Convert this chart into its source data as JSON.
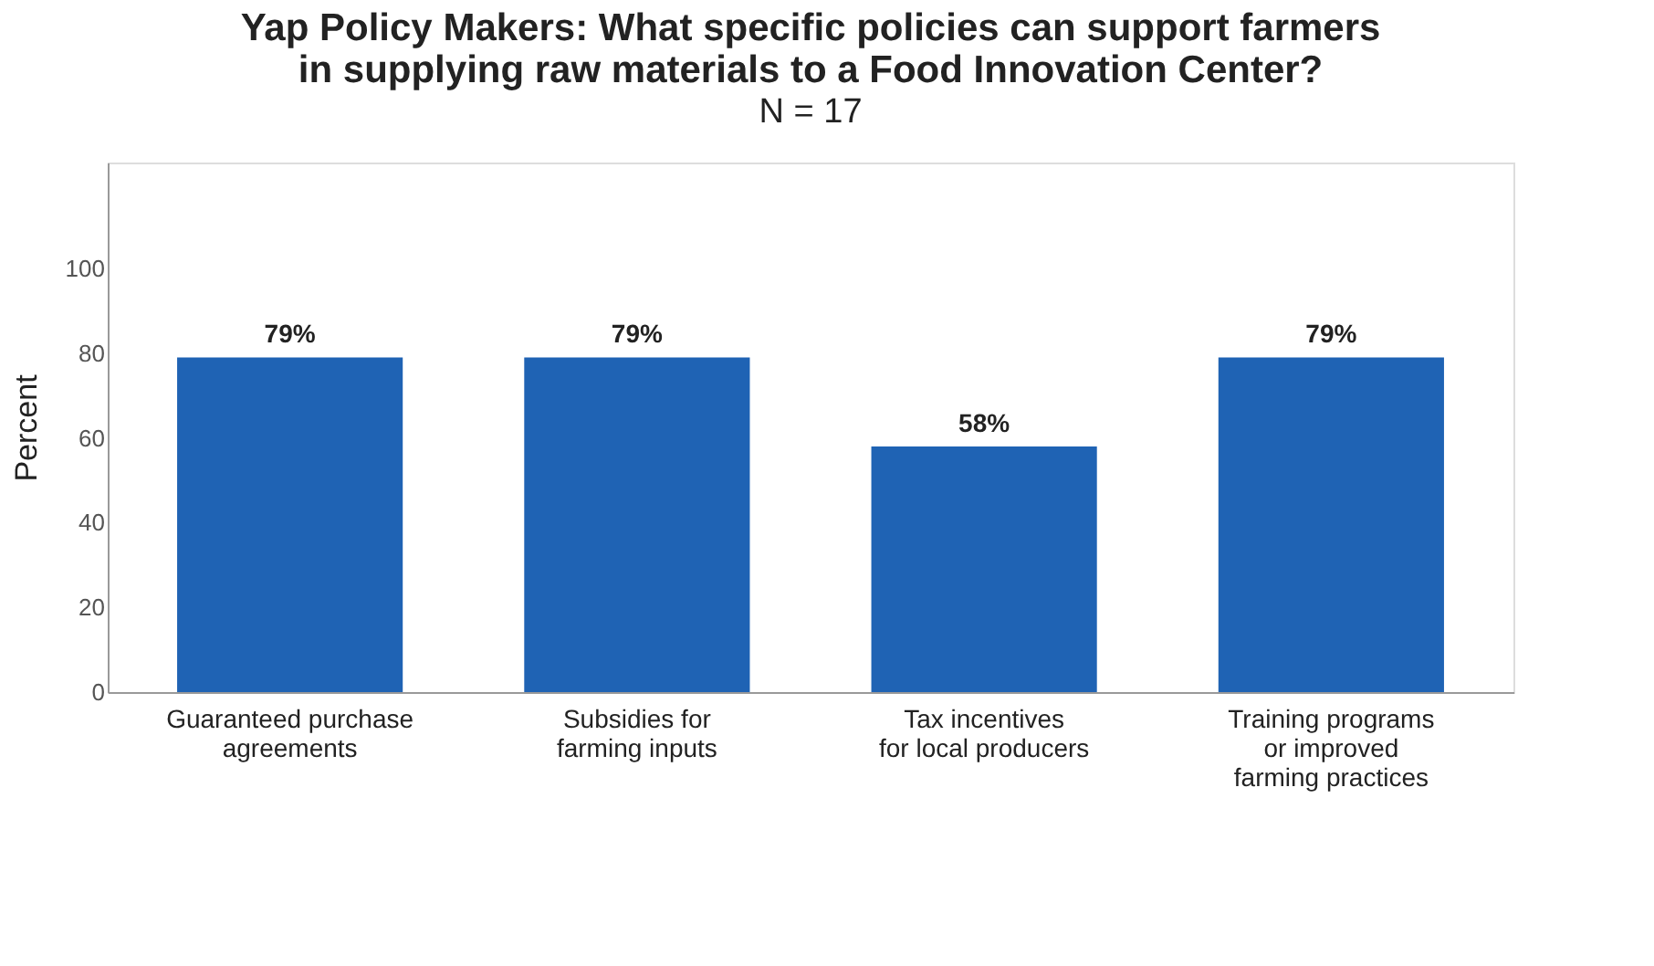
{
  "chart_data": {
    "type": "bar",
    "title": "Yap Policy Makers: What specific policies can support farmers\nin supplying raw materials to a Food Innovation Center?",
    "subtitle": "N = 17",
    "ylabel": "Percent",
    "categories": [
      "Guaranteed purchase\nagreements",
      "Subsidies for\nfarming inputs",
      "Tax incentives\nfor local producers",
      "Training programs\nor improved\nfarming practices"
    ],
    "values": [
      79,
      79,
      58,
      79
    ],
    "value_labels": [
      "79%",
      "79%",
      "58%",
      "79%"
    ],
    "color": "#1f63b4",
    "ylim": [
      0,
      125
    ],
    "yticks": [
      0,
      20,
      40,
      60,
      80,
      100
    ],
    "grid": false
  }
}
